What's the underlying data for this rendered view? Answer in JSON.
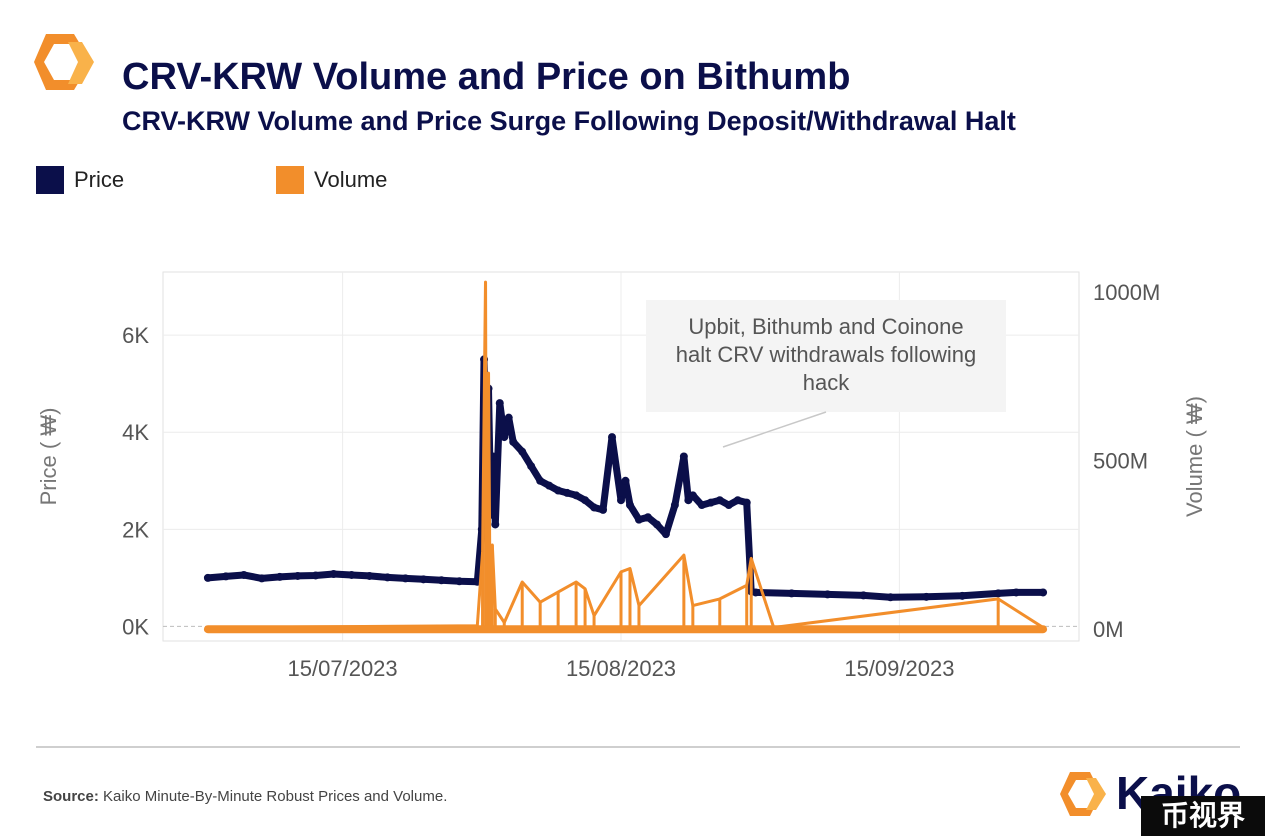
{
  "header": {
    "title": "CRV-KRW Volume and Price on Bithumb",
    "subtitle": "CRV-KRW Volume and Price Surge Following Deposit/Withdrawal Halt"
  },
  "footer": {
    "source_label": "Source:",
    "source_text": "Kaiko Minute-By-Minute Robust Prices and Volume.",
    "brand": "Kaiko",
    "watermark": "币视界"
  },
  "colors": {
    "price": "#0b0f4a",
    "volume": "#f28e2b",
    "accent": "#f28e2b"
  },
  "chart_data": {
    "type": "line",
    "title": "CRV-KRW Volume and Price on Bithumb",
    "subtitle": "CRV-KRW Volume and Price Surge Following Deposit/Withdrawal Halt",
    "xlabel": "",
    "ylabel_left": "Price ( ₩)",
    "ylabel_right": "Volume ( ₩)",
    "ylim_left": [
      -300,
      7300
    ],
    "ylim_right": [
      -35000000,
      1060000000
    ],
    "yticks_left": [
      {
        "value": 0,
        "label": "0K"
      },
      {
        "value": 2000,
        "label": "2K"
      },
      {
        "value": 4000,
        "label": "4K"
      },
      {
        "value": 6000,
        "label": "6K"
      }
    ],
    "yticks_right": [
      {
        "value": 0,
        "label": "0M"
      },
      {
        "value": 500000000,
        "label": "500M"
      },
      {
        "value": 1000000000,
        "label": "1000M"
      }
    ],
    "xlim": [
      "2023-06-25",
      "2023-10-05"
    ],
    "xticks": [
      {
        "value": "2023-07-15",
        "label": "15/07/2023"
      },
      {
        "value": "2023-08-15",
        "label": "15/08/2023"
      },
      {
        "value": "2023-09-15",
        "label": "15/09/2023"
      }
    ],
    "grid": true,
    "legend_position": "top-left",
    "annotation": "Upbit, Bithumb and Coinone halt CRV withdrawals following hack",
    "series": [
      {
        "name": "Price",
        "x": [
          "2023-06-30",
          "2023-07-02",
          "2023-07-04",
          "2023-07-06",
          "2023-07-08",
          "2023-07-10",
          "2023-07-12",
          "2023-07-14",
          "2023-07-16",
          "2023-07-18",
          "2023-07-20",
          "2023-07-22",
          "2023-07-24",
          "2023-07-26",
          "2023-07-28",
          "2023-07-30",
          "2023-07-30T12",
          "2023-07-30T18",
          "2023-07-31",
          "2023-07-31T06",
          "2023-07-31T12",
          "2023-07-31T18",
          "2023-08-01",
          "2023-08-01T12",
          "2023-08-02",
          "2023-08-02T12",
          "2023-08-03",
          "2023-08-04",
          "2023-08-05",
          "2023-08-06",
          "2023-08-07",
          "2023-08-08",
          "2023-08-09",
          "2023-08-10",
          "2023-08-11",
          "2023-08-12",
          "2023-08-13",
          "2023-08-14",
          "2023-08-15",
          "2023-08-15T12",
          "2023-08-16",
          "2023-08-17",
          "2023-08-18",
          "2023-08-19",
          "2023-08-20",
          "2023-08-21",
          "2023-08-22",
          "2023-08-22T12",
          "2023-08-23",
          "2023-08-24",
          "2023-08-25",
          "2023-08-26",
          "2023-08-27",
          "2023-08-28",
          "2023-08-29",
          "2023-08-29T12",
          "2023-08-30",
          "2023-09-03",
          "2023-09-07",
          "2023-09-11",
          "2023-09-14",
          "2023-09-18",
          "2023-09-22",
          "2023-09-26",
          "2023-09-28",
          "2023-10-01"
        ],
        "values": [
          1000,
          1030,
          1060,
          990,
          1020,
          1040,
          1050,
          1080,
          1060,
          1040,
          1010,
          990,
          970,
          950,
          930,
          920,
          2000,
          5500,
          3800,
          4900,
          2300,
          3500,
          2100,
          4600,
          3900,
          4300,
          3800,
          3600,
          3300,
          3000,
          2900,
          2800,
          2750,
          2700,
          2600,
          2450,
          2400,
          3900,
          2600,
          3000,
          2500,
          2200,
          2250,
          2100,
          1900,
          2500,
          3500,
          2600,
          2700,
          2500,
          2550,
          2600,
          2500,
          2600,
          2550,
          720,
          700,
          680,
          660,
          640,
          600,
          610,
          630,
          680,
          700,
          700
        ]
      },
      {
        "name": "Volume",
        "x": [
          "2023-06-30",
          "2023-07-30",
          "2023-07-30T14",
          "2023-07-30T22",
          "2023-07-31",
          "2023-07-31T06",
          "2023-07-31T10",
          "2023-07-31T16",
          "2023-08-01",
          "2023-08-02",
          "2023-08-04",
          "2023-08-06",
          "2023-08-08",
          "2023-08-10",
          "2023-08-11",
          "2023-08-12",
          "2023-08-15",
          "2023-08-16",
          "2023-08-17",
          "2023-08-22",
          "2023-08-23",
          "2023-08-26",
          "2023-08-29",
          "2023-08-29T12",
          "2023-09-01",
          "2023-09-26",
          "2023-10-01"
        ],
        "values": [
          5000000,
          10000000,
          230000000,
          1030000000,
          250000000,
          760000000,
          110000000,
          250000000,
          60000000,
          20000000,
          140000000,
          80000000,
          110000000,
          140000000,
          120000000,
          40000000,
          170000000,
          180000000,
          70000000,
          220000000,
          70000000,
          90000000,
          130000000,
          210000000,
          5000000,
          90000000,
          5000000
        ]
      }
    ]
  }
}
